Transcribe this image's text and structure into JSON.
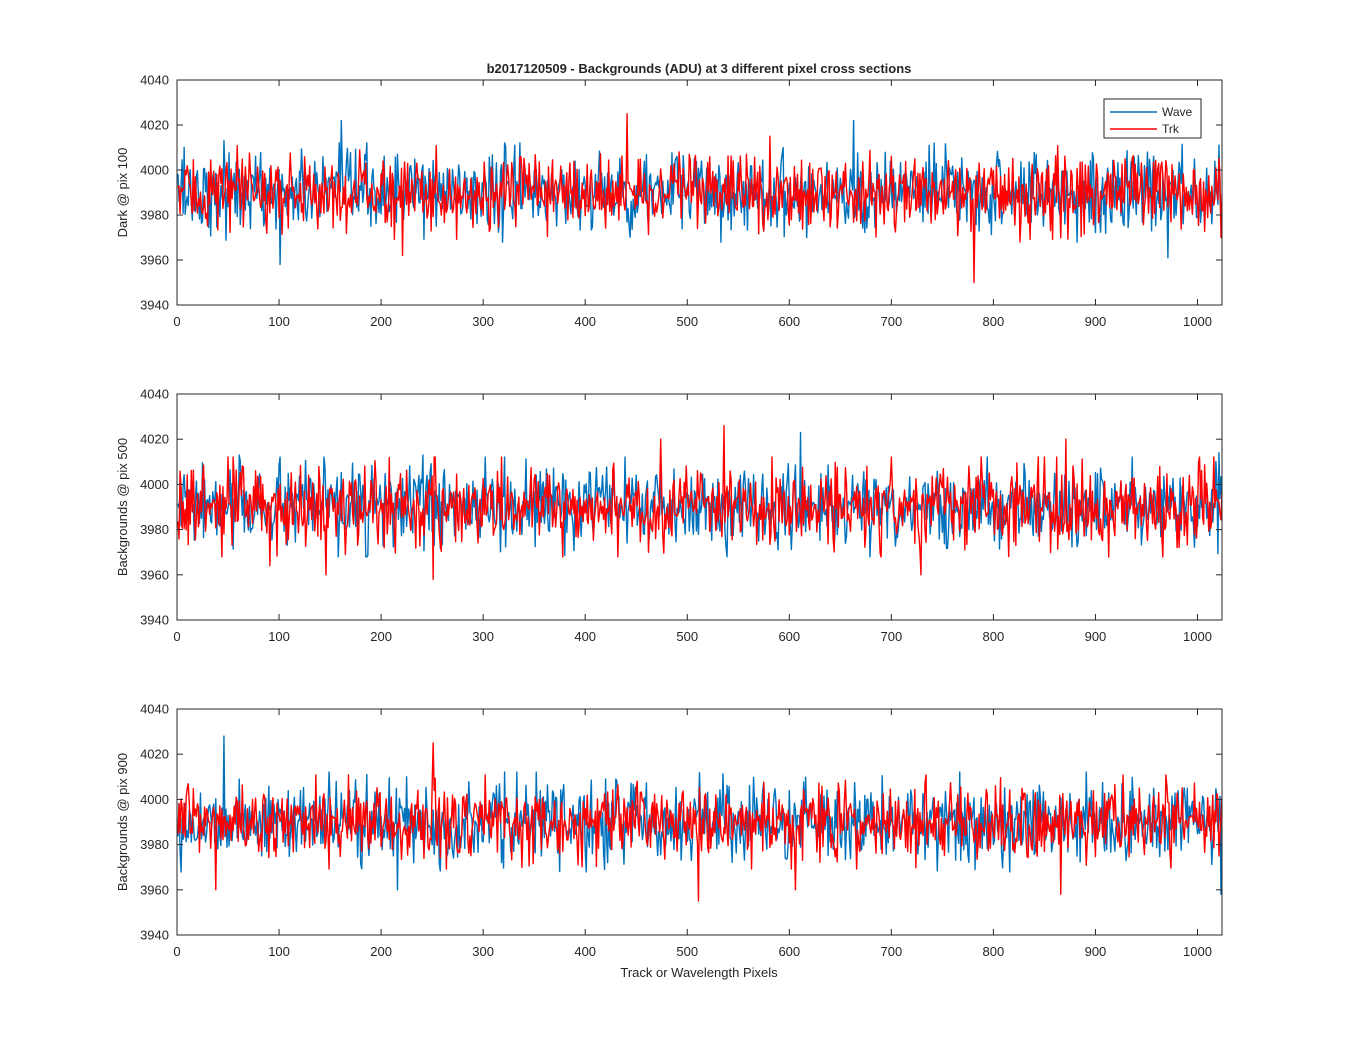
{
  "figure_title": "b2017120509 - Backgrounds (ADU) at 3 different pixel cross sections",
  "xlabel": "Track or Wavelength Pixels",
  "legend": {
    "placement": "top-right of first subplot",
    "entries": [
      {
        "name": "Wave",
        "color": "#0072BD"
      },
      {
        "name": "Trk",
        "color": "#FF0000"
      }
    ]
  },
  "x_ticks": [
    "0",
    "100",
    "200",
    "300",
    "400",
    "500",
    "600",
    "700",
    "800",
    "900",
    "1000"
  ],
  "y_ticks": [
    "3940",
    "3960",
    "3980",
    "4000",
    "4020",
    "4040"
  ],
  "chart_data": [
    {
      "type": "line",
      "title": "b2017120509 - Backgrounds (ADU) at 3 different pixel cross sections",
      "xlabel": "",
      "ylabel": "Dark @ pix 100",
      "xlim": [
        0,
        1024
      ],
      "ylim": [
        3940,
        4040
      ],
      "grid": false,
      "series": [
        {
          "name": "Wave",
          "color": "#0072BD",
          "n_points": 1024,
          "mean": 3990,
          "std": 8.5,
          "peaks": [
            [
              6,
              4010
            ],
            [
              45,
              4013
            ],
            [
              100,
              3958
            ],
            [
              160,
              4022
            ],
            [
              330,
              4011
            ],
            [
              662,
              4022
            ],
            [
              970,
              3961
            ],
            [
              1020,
              4011
            ]
          ]
        },
        {
          "name": "Trk",
          "color": "#FF0000",
          "n_points": 1024,
          "mean": 3990,
          "std": 8.0,
          "peaks": [
            [
              220,
              3962
            ],
            [
              440,
              4025
            ],
            [
              580,
              4015
            ],
            [
              780,
              3950
            ],
            [
              825,
              3968
            ],
            [
              1022,
              3970
            ]
          ]
        }
      ]
    },
    {
      "type": "line",
      "xlabel": "",
      "ylabel": "Backgrounds @ pix 500",
      "xlim": [
        0,
        1024
      ],
      "ylim": [
        3940,
        4040
      ],
      "grid": false,
      "series": [
        {
          "name": "Wave",
          "color": "#0072BD",
          "n_points": 1024,
          "mean": 3990,
          "std": 8.5,
          "peaks": [
            [
              60,
              4013
            ],
            [
              240,
              4013
            ],
            [
              610,
              4023
            ],
            [
              1020,
              4014
            ]
          ]
        },
        {
          "name": "Trk",
          "color": "#FF0000",
          "n_points": 1024,
          "mean": 3990,
          "std": 8.5,
          "peaks": [
            [
              90,
              3964
            ],
            [
              145,
              3960
            ],
            [
              250,
              3958
            ],
            [
              473,
              4020
            ],
            [
              535,
              4026
            ],
            [
              728,
              3960
            ],
            [
              870,
              4020
            ]
          ]
        }
      ]
    },
    {
      "type": "line",
      "xlabel": "Track or Wavelength Pixels",
      "ylabel": "Backgrounds @ pix 900",
      "xlim": [
        0,
        1024
      ],
      "ylim": [
        3940,
        4040
      ],
      "grid": false,
      "series": [
        {
          "name": "Wave",
          "color": "#0072BD",
          "n_points": 1024,
          "mean": 3990,
          "std": 8.5,
          "peaks": [
            [
              45,
              4028
            ],
            [
              215,
              3960
            ],
            [
              1022,
              3958
            ]
          ]
        },
        {
          "name": "Trk",
          "color": "#FF0000",
          "n_points": 1024,
          "mean": 3990,
          "std": 8.0,
          "peaks": [
            [
              37,
              3960
            ],
            [
              250,
              4025
            ],
            [
              510,
              3955
            ],
            [
              605,
              3960
            ],
            [
              865,
              3958
            ]
          ]
        }
      ]
    }
  ]
}
